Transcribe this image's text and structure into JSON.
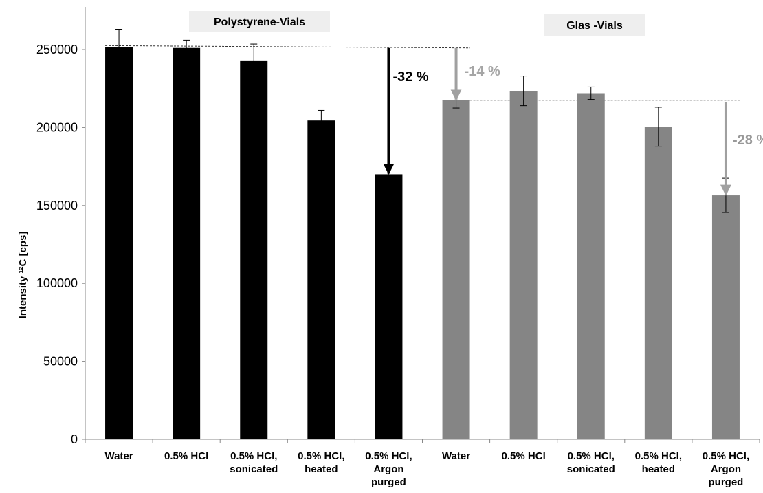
{
  "chart_data": {
    "type": "bar",
    "ylabel": "Intensity ¹²C [cps]",
    "ylim": [
      0,
      270000
    ],
    "yticks": [
      0,
      50000,
      100000,
      150000,
      200000,
      250000
    ],
    "ytick_labels": [
      "0",
      "50000",
      "100000",
      "150000",
      "200000",
      "250000"
    ],
    "grid": false,
    "categories": [
      [
        "Water"
      ],
      [
        "0.5% HCl"
      ],
      [
        "0.5% HCl,",
        "sonicated"
      ],
      [
        "0.5% HCl,",
        "heated"
      ],
      [
        "0.5% HCl,",
        "Argon",
        "purged"
      ],
      [
        "Water"
      ],
      [
        "0.5% HCl"
      ],
      [
        "0.5% HCl,",
        "sonicated"
      ],
      [
        "0.5% HCl,",
        "heated"
      ],
      [
        "0.5% HCl,",
        "Argon",
        "purged"
      ]
    ],
    "groups": [
      {
        "name": "Polystyrene-Vials",
        "color": "#000000",
        "indices": [
          0,
          1,
          2,
          3,
          4
        ]
      },
      {
        "name": "Glas -Vials",
        "color": "#858585",
        "indices": [
          5,
          6,
          7,
          8,
          9
        ]
      }
    ],
    "values": [
      251500,
      251000,
      243000,
      204500,
      170000,
      217500,
      223500,
      222000,
      200500,
      156500
    ],
    "errors": [
      11500,
      5000,
      10500,
      6500,
      0,
      5000,
      9500,
      4000,
      12500,
      11000
    ],
    "colors": [
      "#000000",
      "#000000",
      "#000000",
      "#000000",
      "#000000",
      "#858585",
      "#858585",
      "#858585",
      "#858585",
      "#858585"
    ],
    "reference_lines": [
      {
        "y_start": 252500,
        "y_end": 251000,
        "from_index": 0,
        "to_index": 5
      },
      {
        "y_start": 217500,
        "y_end": 217500,
        "from_index": 5,
        "to_index": 9
      }
    ],
    "annotations": [
      {
        "text": "-32 %",
        "bar_index": 4,
        "from_y": 251000,
        "to_y": 170000,
        "color": "#000000"
      },
      {
        "text": "-14 %",
        "bar_index": 5,
        "from_y": 251000,
        "to_y": 217500,
        "color": "#a6a6a6"
      },
      {
        "text": "-28 %",
        "bar_index": 9,
        "from_y": 216500,
        "to_y": 156500,
        "color": "#999999"
      }
    ]
  }
}
